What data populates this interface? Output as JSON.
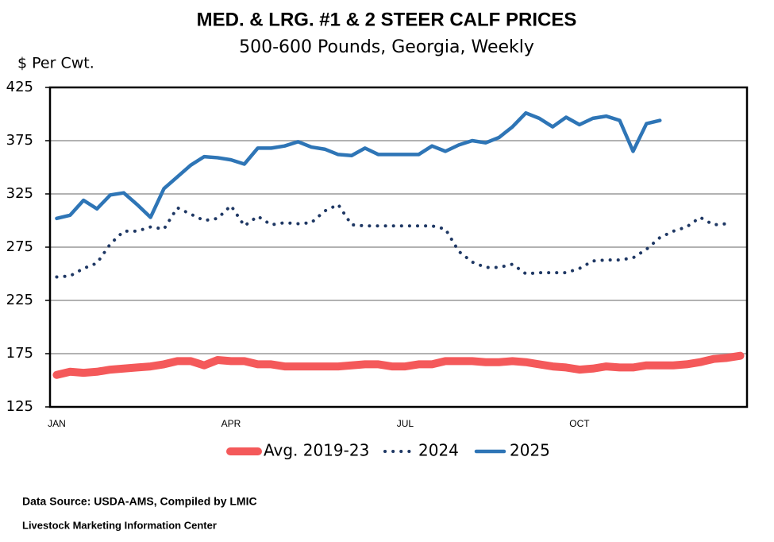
{
  "chart_data": {
    "type": "line",
    "title": "MED. & LRG. #1 & 2 STEER CALF PRICES",
    "subtitle": "500-600 Pounds, Georgia, Weekly",
    "y_label": "$ Per Cwt.",
    "categories": [
      "JAN",
      null,
      null,
      null,
      null,
      null,
      null,
      null,
      null,
      null,
      null,
      null,
      null,
      "APR",
      null,
      null,
      null,
      null,
      null,
      null,
      null,
      null,
      null,
      null,
      null,
      null,
      "JUL",
      null,
      null,
      null,
      null,
      null,
      null,
      null,
      null,
      null,
      null,
      null,
      null,
      "OCT",
      null,
      null,
      null,
      null,
      null,
      null,
      null,
      null,
      null,
      null,
      null,
      null
    ],
    "series": [
      {
        "name": "Avg. 2019-23",
        "color": "#f4595a",
        "values": [
          155,
          158,
          157,
          158,
          160,
          161,
          162,
          163,
          165,
          168,
          168,
          164,
          169,
          168,
          168,
          165,
          165,
          163,
          163,
          163,
          163,
          163,
          164,
          165,
          165,
          163,
          163,
          165,
          165,
          168,
          168,
          168,
          167,
          167,
          168,
          167,
          165,
          163,
          162,
          160,
          161,
          163,
          162,
          162,
          164,
          164,
          164,
          165,
          167,
          170,
          171,
          173
        ]
      },
      {
        "name": "2024",
        "color": "#1f3864",
        "values": [
          247,
          248,
          255,
          260,
          278,
          290,
          290,
          294,
          292,
          312,
          306,
          300,
          302,
          314,
          295,
          304,
          296,
          298,
          297,
          298,
          309,
          315,
          296,
          295,
          295,
          295,
          295,
          295,
          295,
          292,
          271,
          261,
          256,
          256,
          259,
          250,
          251,
          251,
          251,
          255,
          262,
          263,
          263,
          265,
          273,
          284,
          290,
          294,
          303,
          296,
          297,
          null
        ]
      },
      {
        "name": "2025",
        "color": "#2e75b6",
        "values": [
          302,
          305,
          319,
          311,
          324,
          326,
          315,
          303,
          330,
          341,
          352,
          360,
          359,
          357,
          353,
          368,
          368,
          370,
          374,
          369,
          367,
          362,
          361,
          368,
          362,
          362,
          362,
          362,
          370,
          365,
          371,
          375,
          373,
          378,
          388,
          401,
          396,
          388,
          397,
          390,
          396,
          398,
          394,
          365,
          391,
          394,
          null,
          null,
          null,
          null,
          null,
          null
        ]
      }
    ],
    "ylim": [
      125,
      425
    ],
    "yticks": [
      125,
      175,
      225,
      275,
      325,
      375,
      425
    ],
    "grid": true,
    "legend": "bottom",
    "source": "Data Source:  USDA-AMS, Compiled by LMIC",
    "credit": "Livestock Marketing Information Center"
  }
}
